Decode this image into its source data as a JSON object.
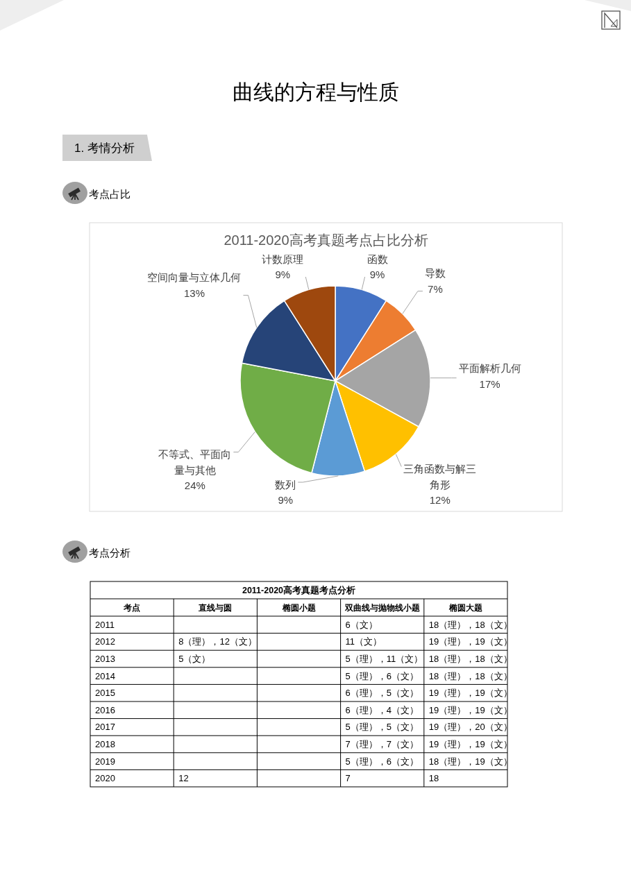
{
  "chart_data": [
    {
      "type": "pie",
      "title": "2011-2020高考真题考点占比分析",
      "categories": [
        "函数",
        "导数",
        "平面解析几何",
        "三角函数与解三角形",
        "数列",
        "不等式、平面向量与其他",
        "空间向量与立体几何",
        "计数原理"
      ],
      "values": [
        9,
        7,
        17,
        12,
        9,
        24,
        13,
        9
      ],
      "colors": [
        "#4472c4",
        "#ed7d31",
        "#a5a5a5",
        "#ffc000",
        "#5b9bd5",
        "#70ad47",
        "#264478",
        "#9e480e"
      ],
      "value_labels": [
        "9%",
        "7%",
        "17%",
        "12%",
        "9%",
        "24%",
        "13%",
        "9%"
      ],
      "annotations": [
        "曲线的方程与性质",
        "1. 考情分析",
        "考点占比"
      ]
    },
    {
      "type": "heatmap",
      "title": "2011-2020高考真题考点分析",
      "ylabel": "考点",
      "categories": [
        "直线与圆",
        "椭圆小题",
        "双曲线与抛物线小题",
        "椭圆大题"
      ],
      "y_categories": [
        "2011",
        "2012",
        "2013",
        "2014",
        "2015",
        "2016",
        "2017",
        "2018",
        "2019",
        "2020"
      ],
      "cells": [
        [
          null,
          null,
          null,
          null
        ],
        [
          null,
          null,
          null,
          null
        ],
        [
          null,
          null,
          null,
          null
        ],
        [
          null,
          null,
          null,
          null
        ],
        [
          null,
          null,
          null,
          null
        ],
        [
          null,
          null,
          null,
          null
        ],
        [
          null,
          null,
          null,
          null
        ],
        [
          null,
          null,
          null,
          null
        ],
        [
          null,
          null,
          null,
          null
        ],
        [
          null,
          null,
          null,
          null
        ]
      ],
      "cell_labels": [
        [
          null,
          null,
          "6（文）",
          "18（理），18（文）"
        ],
        [
          "8（理），12（文）",
          null,
          "11（文）",
          "19（理），19（文）"
        ],
        [
          "5（文）",
          null,
          "5（理），11（文）",
          "18（理），18（文）"
        ],
        [
          null,
          null,
          "5（理），6（文）",
          "18（理），18（文）"
        ],
        [
          null,
          null,
          "6（理），5（文）",
          "19（理），19（文）"
        ],
        [
          null,
          null,
          "6（理），4（文）",
          "19（理），19（文）"
        ],
        [
          null,
          null,
          "5（理），5（文）",
          "19（理），20（文）"
        ],
        [
          null,
          null,
          "7（理），7（文）",
          "19（理），19（文）"
        ],
        [
          null,
          null,
          "5（理），6（文）",
          "18（理），19（文）"
        ],
        [
          "12",
          null,
          "7",
          "18"
        ]
      ],
      "annotations": [
        "考点分析"
      ]
    }
  ]
}
